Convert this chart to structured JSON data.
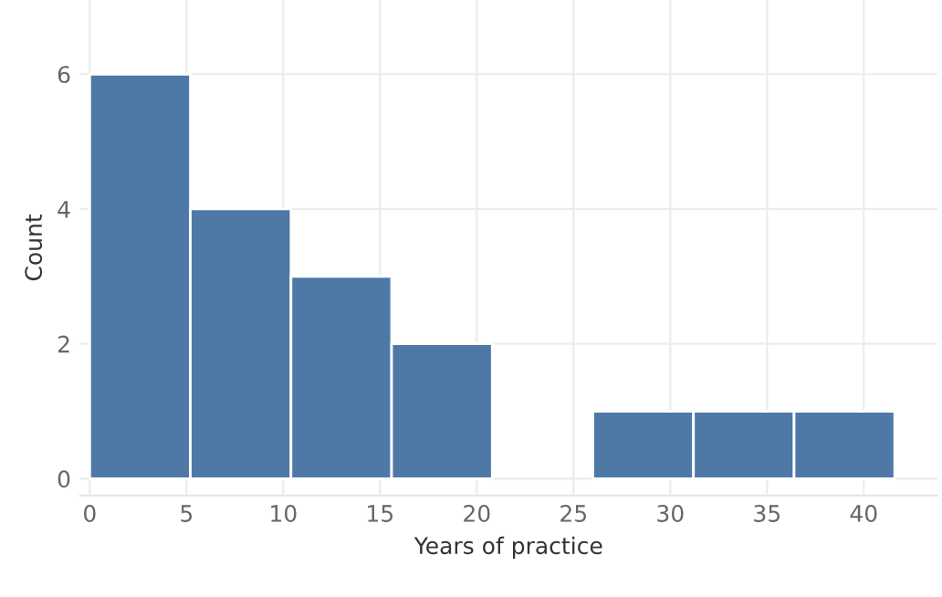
{
  "chart_data": {
    "type": "histogram",
    "xlabel": "Years of practice",
    "ylabel": "Count",
    "bins": [
      0,
      5.2,
      10.4,
      15.6,
      20.8,
      26,
      31.2,
      36.4,
      41.6
    ],
    "values": [
      6,
      4,
      3,
      2,
      0,
      1,
      1,
      1
    ],
    "color": "#4e79a7",
    "xlim": [
      -0.5,
      43.8
    ],
    "xticks": [
      0,
      5,
      10,
      15,
      20,
      25,
      30,
      35,
      40
    ],
    "ylim": [
      -0.25,
      7.1
    ],
    "yticks": [
      0,
      2,
      4,
      6
    ],
    "grid": true,
    "legend": false
  }
}
